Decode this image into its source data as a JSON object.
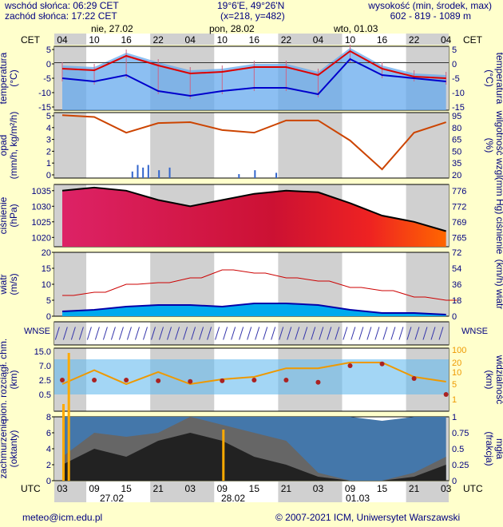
{
  "header": {
    "sunrise": "wschód słońca: 06:29 CET",
    "sunset": "zachód słońca: 17:22 CET",
    "coords": "19°6'E, 49°26'N",
    "grid": "(x=218,  y=482)",
    "elev_label": "wysokość (min, środek, max)",
    "elev_values": "602 - 819 - 1089 m"
  },
  "footer": {
    "email": "meteo@icm.edu.pl",
    "copyright": "© 2007-2021 ICM, Uniwersytet Warszawski"
  },
  "top_axis": {
    "tz": "CET",
    "hours": [
      "04",
      "10",
      "16",
      "22",
      "04",
      "10",
      "16",
      "22",
      "04",
      "10",
      "16",
      "22",
      "04"
    ],
    "dates": [
      "nie, 27.02",
      "pon, 28.02",
      "wto, 01.03"
    ]
  },
  "bottom_axis": {
    "tz": "UTC",
    "hours": [
      "03",
      "09",
      "15",
      "21",
      "03",
      "09",
      "15",
      "21",
      "03",
      "09",
      "15",
      "21",
      "03"
    ],
    "dates": [
      "27.02",
      "28.02",
      "01.03"
    ]
  },
  "colors": {
    "bg": "#ffffcc",
    "night": "#d0d0d0",
    "text": "#000080",
    "temp_max": "#dd0000",
    "temp_min": "#0000cc",
    "humidity": "#cc4400",
    "pressure": "#000000",
    "wind_line": "#cc0000",
    "visibility": "#ee9900",
    "fog": "#ffaa00"
  },
  "chart_data": [
    {
      "type": "line",
      "panel": "temperature",
      "ylabel": "temperatura (°C)",
      "ylim": [
        -15,
        5
      ],
      "yticks_left": [
        "5",
        "0",
        "-5",
        "-10",
        "-15"
      ],
      "yticks_right": [
        "5",
        "0",
        "-5",
        "-10",
        "-15"
      ],
      "x_hours": [
        0,
        6,
        12,
        18,
        24,
        30,
        36,
        42,
        48,
        54,
        60,
        66,
        72
      ],
      "series": [
        {
          "values": [
            -2,
            -2.5,
            2,
            -1,
            -3.5,
            -3,
            -1.5,
            -1.5,
            -4,
            3.5,
            -2,
            -4.5,
            -5
          ]
        },
        {
          "values": [
            -5,
            -6,
            -4,
            -9,
            -10.5,
            -9,
            -8,
            -8,
            -10,
            1,
            -4,
            -5,
            -6
          ]
        }
      ]
    },
    {
      "type": "line",
      "panel": "precipitation_humidity",
      "ylabel": "opad (mm/h, kg/m²/h)",
      "ylabel_right": "wilgotność wzgl. (%)",
      "ylim": [
        0,
        5
      ],
      "ylim_right": [
        20,
        95
      ],
      "yticks_left": [
        "5",
        "4",
        "3",
        "2",
        "1",
        "0"
      ],
      "yticks_right": [
        "95",
        "80",
        "65",
        "50",
        "35",
        "20"
      ],
      "x_hours": [
        0,
        6,
        12,
        18,
        24,
        30,
        36,
        42,
        48,
        54,
        60,
        66,
        72
      ],
      "series": [
        {
          "values": [
            92,
            90,
            72,
            83,
            84,
            75,
            72,
            86,
            86,
            63,
            30,
            72,
            84
          ]
        }
      ]
    },
    {
      "type": "line",
      "panel": "pressure",
      "ylabel": "ciśnienie (hPa)",
      "ylabel_right": "(mm Hg) ciśnienie",
      "ylim": [
        1017,
        1037
      ],
      "yticks_left": [
        "1035",
        "1030",
        "1025",
        "1020"
      ],
      "yticks_right": [
        "776",
        "772",
        "769",
        "765"
      ],
      "x_hours": [
        0,
        6,
        12,
        18,
        24,
        30,
        36,
        42,
        48,
        54,
        60,
        66,
        72
      ],
      "series": [
        {
          "values": [
            1035,
            1036,
            1035,
            1032,
            1030,
            1032,
            1034,
            1035,
            1034.5,
            1031,
            1027,
            1025,
            1022
          ]
        }
      ]
    },
    {
      "type": "line",
      "panel": "wind",
      "ylabel": "wiatr (m/s)",
      "ylabel_right": "(km/h) wiatr",
      "ylim": [
        0,
        20
      ],
      "yticks_left": [
        "20",
        "15",
        "10",
        "5",
        "0"
      ],
      "yticks_right": [
        "72",
        "54",
        "36",
        "18",
        "0"
      ],
      "x_hours": [
        0,
        6,
        12,
        18,
        24,
        30,
        36,
        42,
        48,
        54,
        60,
        66,
        72
      ],
      "series": [
        {
          "values": [
            6.5,
            7.5,
            10,
            10.5,
            12,
            14.5,
            13.5,
            12,
            11,
            9,
            8,
            6,
            5
          ]
        },
        {
          "values": [
            1.5,
            2,
            3,
            3.5,
            3.5,
            3,
            4,
            4,
            3.5,
            2,
            1,
            1,
            0.5
          ]
        }
      ]
    },
    {
      "type": "scatter",
      "panel": "cloud_base_visibility",
      "ylabel": "pion. rozciągł. chm. (km)",
      "ylabel_right": "widzialność (km)",
      "yticks_left": [
        "15.0",
        "7.0",
        "2.5",
        "0.5"
      ],
      "yticks_right": [
        "100",
        "20",
        "10",
        "5",
        "1"
      ],
      "x_hours": [
        0,
        6,
        12,
        18,
        24,
        30,
        36,
        42,
        48,
        54,
        60,
        66,
        72
      ],
      "series": [
        {
          "values": [
            2.5,
            2.5,
            2.5,
            2.4,
            2.3,
            2.4,
            2.5,
            2.5,
            2.2,
            7.0,
            8.0,
            3.0,
            0.5
          ]
        },
        {
          "values": [
            5,
            12,
            5,
            10,
            5,
            7,
            8,
            14,
            14,
            20,
            20,
            8,
            6
          ]
        }
      ]
    },
    {
      "type": "area",
      "panel": "cloudiness_fog",
      "ylabel": "zachmurzenie (oktanty)",
      "ylabel_right": "mgła (frakcja)",
      "ylim": [
        0,
        8
      ],
      "yticks_left": [
        "8",
        "6",
        "4",
        "2",
        "0"
      ],
      "yticks_right": [
        "1",
        "0.75",
        "0.5",
        "0.25",
        "0"
      ],
      "x_hours": [
        0,
        6,
        12,
        18,
        24,
        30,
        36,
        42,
        48,
        54,
        60,
        66,
        72
      ],
      "series": [
        {
          "values": [
            8,
            8,
            8,
            8,
            8,
            8,
            8,
            8,
            8,
            8,
            7.5,
            8,
            8
          ]
        },
        {
          "values": [
            3,
            6,
            5.5,
            6,
            8,
            7,
            6,
            5,
            1,
            0,
            0,
            1,
            3
          ]
        },
        {
          "values": [
            2,
            4,
            3,
            5,
            6,
            5,
            3,
            2,
            0.5,
            0,
            0,
            0.5,
            2
          ]
        }
      ]
    }
  ]
}
